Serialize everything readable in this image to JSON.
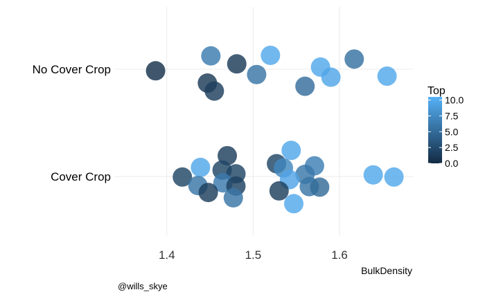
{
  "chart_data": {
    "type": "scatter",
    "xlabel": "BulkDensity",
    "ylabel": "",
    "x_ticks": [
      "1.4",
      "1.5",
      "1.6"
    ],
    "x_tick_values": [
      1.4,
      1.5,
      1.6
    ],
    "categories": [
      "No Cover Crop",
      "Cover Crop"
    ],
    "xlim": [
      1.34,
      1.685
    ],
    "jitter_range": [
      -0.6,
      0.6
    ],
    "grid": true,
    "legend": {
      "title": "Top",
      "position": "right",
      "labels": [
        "10.0",
        "7.5",
        "5.0",
        "2.5",
        "0.0"
      ],
      "values": [
        10,
        7.5,
        5,
        2.5,
        0
      ],
      "range": [
        0,
        10.5
      ],
      "color_low": "#132B43",
      "color_high": "#56B1F7"
    },
    "caption": "@wills_skye",
    "points": [
      {
        "category": "No Cover Crop",
        "x": 1.387,
        "jitter": -0.03,
        "top": 0.5
      },
      {
        "category": "No Cover Crop",
        "x": 1.451,
        "jitter": 0.25,
        "top": 6.3
      },
      {
        "category": "No Cover Crop",
        "x": 1.481,
        "jitter": 0.1,
        "top": 1.2
      },
      {
        "category": "No Cover Crop",
        "x": 1.52,
        "jitter": 0.26,
        "top": 9.8
      },
      {
        "category": "No Cover Crop",
        "x": 1.504,
        "jitter": -0.1,
        "top": 5.8
      },
      {
        "category": "No Cover Crop",
        "x": 1.578,
        "jitter": 0.04,
        "top": 9.8
      },
      {
        "category": "No Cover Crop",
        "x": 1.59,
        "jitter": -0.15,
        "top": 9.6
      },
      {
        "category": "No Cover Crop",
        "x": 1.617,
        "jitter": 0.19,
        "top": 5.5
      },
      {
        "category": "No Cover Crop",
        "x": 1.655,
        "jitter": -0.13,
        "top": 9.8
      },
      {
        "category": "No Cover Crop",
        "x": 1.447,
        "jitter": -0.26,
        "top": 1.2
      },
      {
        "category": "No Cover Crop",
        "x": 1.455,
        "jitter": -0.41,
        "top": 1.5
      },
      {
        "category": "No Cover Crop",
        "x": 1.56,
        "jitter": -0.32,
        "top": 5.2
      },
      {
        "category": "Cover Crop",
        "x": 1.47,
        "jitter": 0.39,
        "top": 1.5
      },
      {
        "category": "Cover Crop",
        "x": 1.439,
        "jitter": 0.17,
        "top": 9.7
      },
      {
        "category": "Cover Crop",
        "x": 1.464,
        "jitter": 0.12,
        "top": 2.0
      },
      {
        "category": "Cover Crop",
        "x": 1.48,
        "jitter": 0.05,
        "top": 2.0
      },
      {
        "category": "Cover Crop",
        "x": 1.418,
        "jitter": -0.01,
        "top": 2.0
      },
      {
        "category": "Cover Crop",
        "x": 1.436,
        "jitter": -0.17,
        "top": 5.8
      },
      {
        "category": "Cover Crop",
        "x": 1.465,
        "jitter": -0.12,
        "top": 6.2
      },
      {
        "category": "Cover Crop",
        "x": 1.48,
        "jitter": -0.18,
        "top": 1.8
      },
      {
        "category": "Cover Crop",
        "x": 1.448,
        "jitter": -0.3,
        "top": 1.5
      },
      {
        "category": "Cover Crop",
        "x": 1.477,
        "jitter": -0.4,
        "top": 5.8
      },
      {
        "category": "Cover Crop",
        "x": 1.544,
        "jitter": 0.49,
        "top": 9.7
      },
      {
        "category": "Cover Crop",
        "x": 1.527,
        "jitter": 0.24,
        "top": 2.0
      },
      {
        "category": "Cover Crop",
        "x": 1.535,
        "jitter": 0.16,
        "top": 7.2
      },
      {
        "category": "Cover Crop",
        "x": 1.571,
        "jitter": 0.2,
        "top": 6.6
      },
      {
        "category": "Cover Crop",
        "x": 1.56,
        "jitter": 0.04,
        "top": 6.0
      },
      {
        "category": "Cover Crop",
        "x": 1.542,
        "jitter": -0.06,
        "top": 9.5
      },
      {
        "category": "Cover Crop",
        "x": 1.565,
        "jitter": -0.19,
        "top": 5.8
      },
      {
        "category": "Cover Crop",
        "x": 1.577,
        "jitter": -0.2,
        "top": 5.0
      },
      {
        "category": "Cover Crop",
        "x": 1.53,
        "jitter": -0.27,
        "top": 1.5
      },
      {
        "category": "Cover Crop",
        "x": 1.547,
        "jitter": -0.51,
        "top": 9.8
      },
      {
        "category": "Cover Crop",
        "x": 1.639,
        "jitter": 0.03,
        "top": 9.8
      },
      {
        "category": "Cover Crop",
        "x": 1.663,
        "jitter": -0.01,
        "top": 9.8
      }
    ]
  }
}
